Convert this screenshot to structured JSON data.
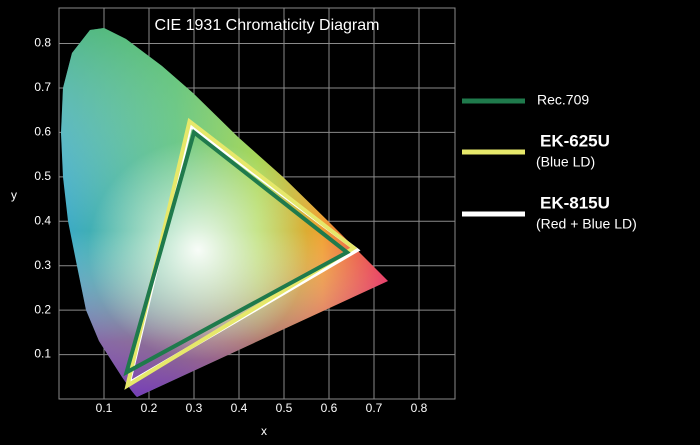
{
  "chart_data": {
    "type": "line",
    "title": "CIE 1931 Chromaticity Diagram",
    "xlabel": "x",
    "ylabel": "y",
    "xlim": [
      0,
      0.88
    ],
    "ylim": [
      0,
      0.88
    ],
    "xticks": [
      0.1,
      0.2,
      0.3,
      0.4,
      0.5,
      0.6,
      0.7,
      0.8
    ],
    "yticks": [
      0.1,
      0.2,
      0.3,
      0.4,
      0.5,
      0.6,
      0.7,
      0.8
    ],
    "grid": true,
    "closed": true,
    "series": [
      {
        "name": "EK-815U",
        "description": "(Red + Blue LD)",
        "color": "#ffffff",
        "x": [
          0.662,
          0.292,
          0.155
        ],
        "y": [
          0.335,
          0.615,
          0.035
        ]
      },
      {
        "name": "EK-625U",
        "description": "(Blue LD)",
        "color": "#e6e86a",
        "x": [
          0.655,
          0.29,
          0.152
        ],
        "y": [
          0.34,
          0.625,
          0.03
        ]
      },
      {
        "name": "Rec.709",
        "color": "#1f7a4c",
        "x": [
          0.64,
          0.3,
          0.15
        ],
        "y": [
          0.33,
          0.6,
          0.06
        ]
      }
    ]
  }
}
